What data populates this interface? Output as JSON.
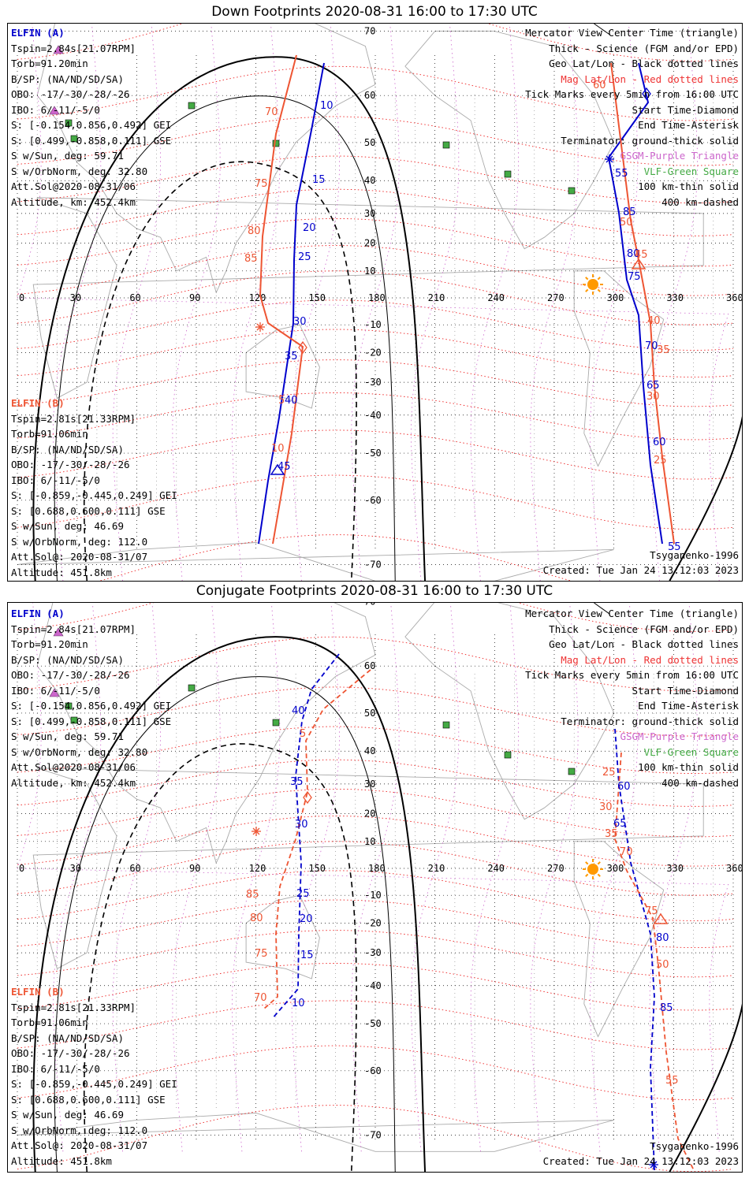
{
  "panels": [
    {
      "title": "Down Footprints 2020-08-31 16:00 to 17:30 UTC",
      "elfin_a": {
        "label": "ELFIN (A)",
        "lines": [
          "Tspin=2.84s[21.07RPM]",
          "Torb=91.20min",
          "B/SP: (NA/ND/SD/SA)",
          "OBO: -17/-30/-28/-26",
          "IBO: 6/-11/-5/0",
          "S: [-0.154,0.856,0.492] GEI",
          "S: [0.499,-0.858,0.111] GSE",
          "S w/Sun, deg: 59.71",
          "S w/OrbNorm, deg: 32.80",
          "Att.Sol@2020-08-31/06",
          "Altitude, km: 452.4km"
        ]
      },
      "elfin_b": {
        "label": "ELFIN (B)",
        "lines": [
          "Tspin=2.81s[21.33RPM]",
          "Torb=91.06min",
          "B/SP: (NA/ND/SD/SA)",
          "OBO: -17/-30/-28/-26",
          "IBO: 6/-11/-5/0",
          "S: [-0.859,-0.445,0.249] GEI",
          "S: [0.688,0.600,0.111] GSE",
          "S w/Sun, deg: 46.69",
          "S w/OrbNorm, deg: 112.0",
          "Att.Sol@: 2020-08-31/07",
          "Altitude: 451.8km"
        ]
      },
      "footer_left_hidden": "",
      "model": "Tsyganenko-1996",
      "created": "Created: Tue Jan 24 13:12:03 2023"
    },
    {
      "title": "Conjugate Footprints 2020-08-31 16:00 to 17:30 UTC",
      "elfin_a": {
        "label": "ELFIN (A)",
        "lines": [
          "Tspin=2.84s[21.07RPM]",
          "Torb=91.20min",
          "B/SP: (NA/ND/SD/SA)",
          "OBO: -17/-30/-28/-26",
          "IBO: 6/-11/-5/0",
          "S: [-0.154,0.856,0.492] GEI",
          "S: [0.499,-0.858,0.111] GSE",
          "S w/Sun, deg: 59.71",
          "S w/OrbNorm, deg: 32.80",
          "Att.Sol@2020-08-31/06",
          "Altitude, km: 452.4km"
        ]
      },
      "elfin_b": {
        "label": "ELFIN (B)",
        "lines": [
          "Tspin=2.81s[21.33RPM]",
          "Torb=91.06min",
          "B/SP: (NA/ND/SD/SA)",
          "OBO: -17/-30/-28/-26",
          "IBO: 6/-11/-5/0",
          "S: [-0.859,-0.445,0.249] GEI",
          "S: [0.688,0.600,0.111] GSE",
          "S w/Sun, deg: 46.69",
          "S w/OrbNorm, deg: 112.0",
          "Att.Sol@: 2020-08-31/07",
          "Altitude: 451.8km"
        ]
      },
      "model": "Tsyganenko-1996",
      "created": "Created: Tue Jan 24 13:12:03 2023"
    }
  ],
  "legend": [
    {
      "text": "Mercator View Center Time (triangle)",
      "color": "#000000"
    },
    {
      "text": "Thick - Science (FGM and/or EPD)",
      "color": "#000000"
    },
    {
      "text": "Geo Lat/Lon - Black dotted lines",
      "color": "#000000"
    },
    {
      "text": "Mag Lat/Lon - Red dotted lines",
      "color": "#ee3333"
    },
    {
      "text": "Tick Marks every 5min from 16:00 UTC",
      "color": "#000000"
    },
    {
      "text": "Start Time-Diamond",
      "color": "#000000"
    },
    {
      "text": "End Time-Asterisk",
      "color": "#000000"
    },
    {
      "text": "Terminator: ground-thick solid",
      "color": "#000000"
    },
    {
      "text": "GSGM-Purple Triangle",
      "color": "#cc66cc"
    },
    {
      "text": "VLF-Green Square",
      "color": "#44aa44"
    },
    {
      "text": "100 km-thin solid",
      "color": "#000000"
    },
    {
      "text": "400 km-dashed",
      "color": "#000000"
    }
  ],
  "axes": {
    "lon_ticks": [
      "0",
      "30",
      "60",
      "90",
      "120",
      "150",
      "180",
      "210",
      "240",
      "270",
      "300",
      "330",
      "360"
    ],
    "lat_ticks": [
      "70",
      "60",
      "50",
      "40",
      "30",
      "20",
      "10",
      "-10",
      "-20",
      "-30",
      "-40",
      "-50",
      "-60",
      "-70"
    ]
  },
  "tracks": {
    "down": {
      "a_west": [
        "10",
        "15",
        "20",
        "25",
        "30",
        "35",
        "40",
        "45"
      ],
      "b_west": [
        "70",
        "75",
        "80",
        "85",
        "10",
        "5"
      ],
      "a_east": [
        "55",
        "85",
        "80",
        "75",
        "70",
        "65",
        "60",
        "55"
      ],
      "b_east": [
        "60",
        "50",
        "45",
        "40",
        "35",
        "30",
        "25"
      ]
    },
    "conj": {
      "a_west": [
        "40",
        "35",
        "30",
        "25",
        "20",
        "15",
        "10"
      ],
      "b_west": [
        "5",
        "85",
        "80",
        "75",
        "70"
      ],
      "a_east": [
        "60",
        "65",
        "80",
        "85"
      ],
      "b_east": [
        "25",
        "30",
        "35",
        "70",
        "75",
        "50",
        "55"
      ]
    }
  },
  "colors": {
    "elfin_a": "#0000cc",
    "elfin_b": "#ee5533",
    "mag_grid": "#ee2222",
    "geo_grid": "#000000",
    "gsgm": "#cc66cc",
    "vlf": "#44aa44",
    "sun": "#ff9900"
  }
}
